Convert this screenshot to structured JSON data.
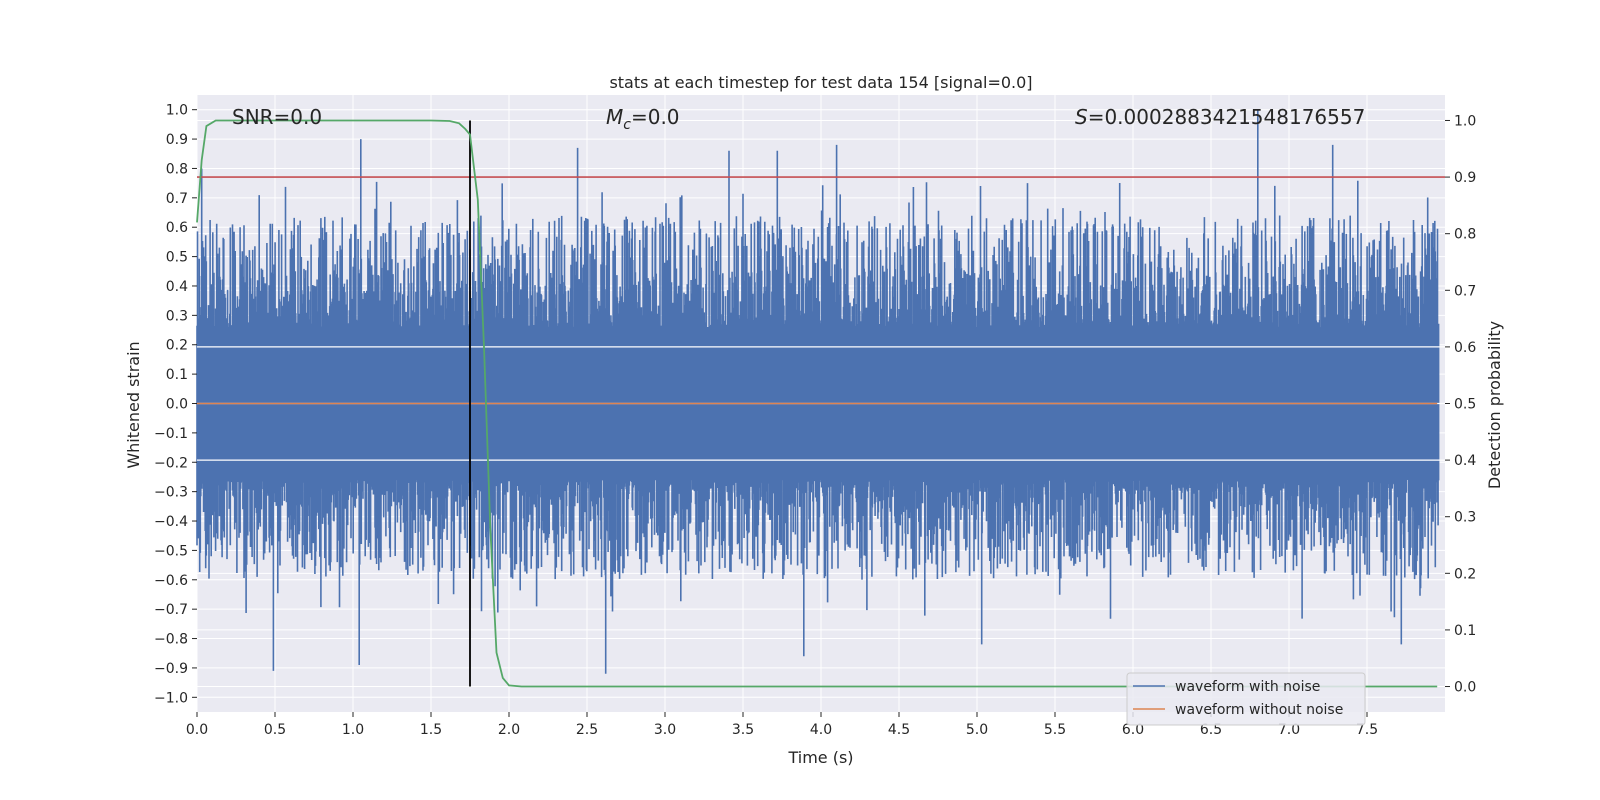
{
  "chart_data": {
    "type": "line",
    "title": "stats at each timestep for test data 154 [signal=0.0]",
    "xlabel": "Time (s)",
    "ylabel_left": "Whitened strain",
    "ylabel_right": "Detection probability",
    "xlim": [
      0.0,
      8.0
    ],
    "ylim_left": [
      -1.05,
      1.05
    ],
    "ylim_right": [
      -0.045,
      1.045
    ],
    "x_ticks": [
      0.0,
      0.5,
      1.0,
      1.5,
      2.0,
      2.5,
      3.0,
      3.5,
      4.0,
      4.5,
      5.0,
      5.5,
      6.0,
      6.5,
      7.0,
      7.5
    ],
    "x_tick_labels": [
      "0.0",
      "0.5",
      "1.0",
      "1.5",
      "2.0",
      "2.5",
      "3.0",
      "3.5",
      "4.0",
      "4.5",
      "5.0",
      "5.5",
      "6.0",
      "6.5",
      "7.0",
      "7.5"
    ],
    "y_left_ticks": [
      -1.0,
      -0.9,
      -0.8,
      -0.7,
      -0.6,
      -0.5,
      -0.4,
      -0.3,
      -0.2,
      -0.1,
      0.0,
      0.1,
      0.2,
      0.3,
      0.4,
      0.5,
      0.6,
      0.7,
      0.8,
      0.9,
      1.0
    ],
    "y_left_tick_labels": [
      "−1.0",
      "−0.9",
      "−0.8",
      "−0.7",
      "−0.6",
      "−0.5",
      "−0.4",
      "−0.3",
      "−0.2",
      "−0.1",
      "0.0",
      "0.1",
      "0.2",
      "0.3",
      "0.4",
      "0.5",
      "0.6",
      "0.7",
      "0.8",
      "0.9",
      "1.0"
    ],
    "y_right_ticks": [
      0.0,
      0.1,
      0.2,
      0.3,
      0.4,
      0.5,
      0.6,
      0.7,
      0.8,
      0.9,
      1.0
    ],
    "y_right_tick_labels": [
      "0.0",
      "0.1",
      "0.2",
      "0.3",
      "0.4",
      "0.5",
      "0.6",
      "0.7",
      "0.8",
      "0.9",
      "1.0"
    ],
    "annotations": {
      "snr": "SNR=0.0",
      "mc_symbol": "M",
      "mc_sub": "c",
      "mc_rest": "=0.0",
      "s_symbol": "S",
      "s_rest": "=0.0002883421548176557"
    },
    "series": [
      {
        "name": "waveform with noise",
        "color": "#4c72b0",
        "axis": "left",
        "description": "dense whitened noise, typical band about -0.4 to 0.45 with spikes",
        "peak_spikes": [
          {
            "x": 0.03,
            "y": 0.8
          },
          {
            "x": 1.05,
            "y": 0.9
          },
          {
            "x": 2.44,
            "y": 0.87
          },
          {
            "x": 3.41,
            "y": 0.86
          },
          {
            "x": 3.72,
            "y": 0.86
          },
          {
            "x": 4.1,
            "y": 0.88
          },
          {
            "x": 6.8,
            "y": 1.0
          },
          {
            "x": 7.28,
            "y": 0.88
          }
        ],
        "trough_spikes": [
          {
            "x": 0.49,
            "y": -0.91
          },
          {
            "x": 1.04,
            "y": -0.89
          },
          {
            "x": 2.62,
            "y": -0.92
          },
          {
            "x": 3.89,
            "y": -0.86
          },
          {
            "x": 5.03,
            "y": -0.82
          },
          {
            "x": 7.72,
            "y": -0.82
          }
        ]
      },
      {
        "name": "waveform without noise",
        "color": "#dd8452",
        "axis": "left",
        "x": [
          0.0,
          7.95
        ],
        "y": [
          0.0,
          0.0
        ]
      },
      {
        "name": "detection probability",
        "color": "#55a868",
        "axis": "right",
        "x": [
          0.0,
          0.03,
          0.06,
          0.12,
          0.2,
          0.4,
          0.8,
          1.2,
          1.5,
          1.62,
          1.68,
          1.72,
          1.75,
          1.8,
          1.84,
          1.88,
          1.92,
          1.96,
          2.0,
          2.08,
          2.2,
          2.5,
          3.0,
          4.0,
          5.0,
          6.0,
          7.0,
          7.95
        ],
        "y": [
          0.82,
          0.93,
          0.99,
          1.0,
          1.0,
          1.0,
          1.0,
          1.0,
          1.0,
          0.999,
          0.995,
          0.985,
          0.975,
          0.86,
          0.6,
          0.28,
          0.06,
          0.015,
          0.002,
          0.0,
          0.0,
          0.0,
          0.0,
          0.0,
          0.0,
          0.0,
          0.0,
          0.0
        ]
      }
    ],
    "threshold_line": {
      "axis": "right",
      "value": 0.9,
      "color": "#c44e52"
    },
    "trigger_line": {
      "x": 1.75,
      "color": "#000000",
      "y_right_from": 0.0,
      "y_right_to": 1.0
    },
    "legend": {
      "position": "lower-right",
      "entries": [
        {
          "label": "waveform with noise",
          "color": "#4c72b0"
        },
        {
          "label": "waveform without noise",
          "color": "#dd8452"
        }
      ]
    },
    "style": {
      "background": "#eaeaf2",
      "grid": true,
      "grid_color": "#ffffff"
    }
  }
}
